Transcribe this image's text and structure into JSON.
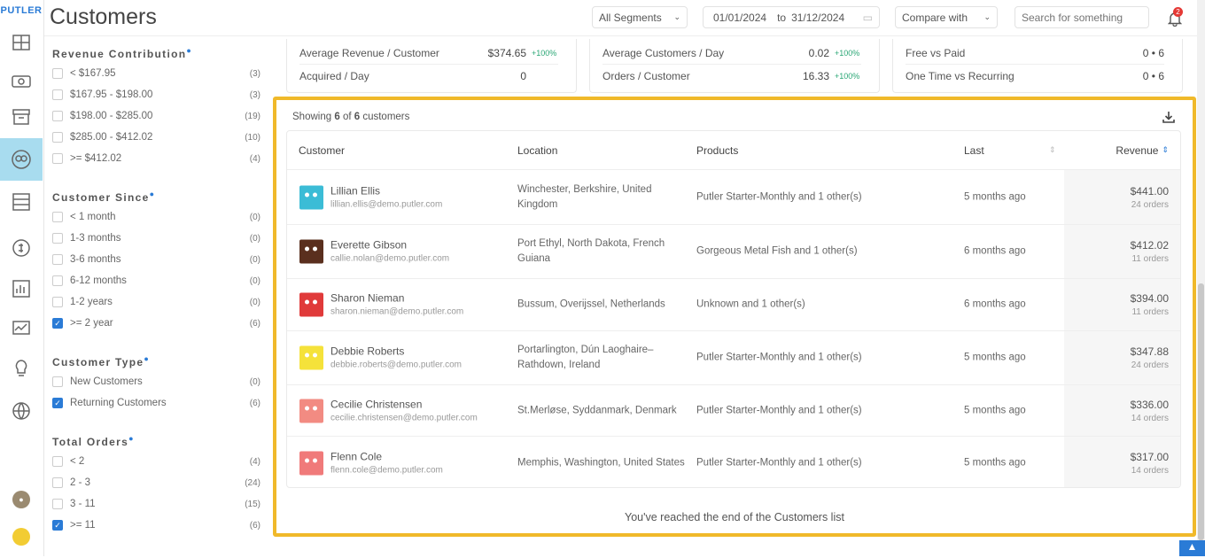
{
  "app": {
    "logo": "PUTLER",
    "title": "Customers"
  },
  "nav": [
    {
      "icon": "dashboard-icon"
    },
    {
      "icon": "sales-icon"
    },
    {
      "icon": "products-icon"
    },
    {
      "icon": "customers-icon",
      "active": true
    },
    {
      "icon": "transactions-icon"
    },
    {
      "icon": "subscriptions-icon"
    },
    {
      "icon": "reports-icon"
    },
    {
      "icon": "analytics-icon"
    },
    {
      "icon": "insights-icon"
    },
    {
      "icon": "global-icon"
    }
  ],
  "header": {
    "segment": "All Segments",
    "date_from": "01/01/2024",
    "date_to_label": "to",
    "date_to": "31/12/2024",
    "compare": "Compare with",
    "search_placeholder": "Search for something",
    "notifications": "2"
  },
  "filters": [
    {
      "title": "Revenue Contribution",
      "items": [
        {
          "label": "< $167.95",
          "count": "(3)"
        },
        {
          "label": "$167.95 - $198.00",
          "count": "(3)"
        },
        {
          "label": "$198.00 - $285.00",
          "count": "(19)"
        },
        {
          "label": "$285.00 - $412.02",
          "count": "(10)"
        },
        {
          "label": ">= $412.02",
          "count": "(4)"
        }
      ]
    },
    {
      "title": "Customer Since",
      "items": [
        {
          "label": "< 1 month",
          "count": "(0)"
        },
        {
          "label": "1-3 months",
          "count": "(0)"
        },
        {
          "label": "3-6 months",
          "count": "(0)"
        },
        {
          "label": "6-12 months",
          "count": "(0)"
        },
        {
          "label": "1-2 years",
          "count": "(0)"
        },
        {
          "label": ">= 2 year",
          "count": "(6)",
          "checked": true
        }
      ]
    },
    {
      "title": "Customer Type",
      "items": [
        {
          "label": "New Customers",
          "count": "(0)"
        },
        {
          "label": "Returning Customers",
          "count": "(6)",
          "checked": true
        }
      ]
    },
    {
      "title": "Total Orders",
      "items": [
        {
          "label": "< 2",
          "count": "(4)"
        },
        {
          "label": "2 - 3",
          "count": "(24)"
        },
        {
          "label": "3 - 11",
          "count": "(15)"
        },
        {
          "label": ">= 11",
          "count": "(6)",
          "checked": true
        }
      ]
    }
  ],
  "stats": [
    [
      {
        "label": "Average Revenue / Customer",
        "value": "$374.65",
        "change": "+100%"
      },
      {
        "label": "Acquired / Day",
        "value": "0",
        "change": ""
      }
    ],
    [
      {
        "label": "Average Customers / Day",
        "value": "0.02",
        "change": "+100%"
      },
      {
        "label": "Orders / Customer",
        "value": "16.33",
        "change": "+100%"
      }
    ],
    [
      {
        "label": "Free vs Paid",
        "value": "0 • 6",
        "change": ""
      },
      {
        "label": "One Time vs Recurring",
        "value": "0 • 6",
        "change": ""
      }
    ]
  ],
  "list": {
    "showing_prefix": "Showing",
    "shown": "6",
    "of": "of",
    "total": "6",
    "suffix": "customers",
    "end_text": "You've reached the end of the Customers list"
  },
  "columns": {
    "customer": "Customer",
    "location": "Location",
    "products": "Products",
    "last": "Last",
    "revenue": "Revenue"
  },
  "customers": [
    {
      "name": "Lillian Ellis",
      "email": "lillian.ellis@demo.putler.com",
      "location": "Winchester, Berkshire, United Kingdom",
      "products": "Putler Starter-Monthly and 1 other(s)",
      "last": "5 months ago",
      "revenue": "$441.00",
      "orders": "24 orders",
      "avatar_color": "#3bbcd6"
    },
    {
      "name": "Everette Gibson",
      "email": "callie.nolan@demo.putler.com",
      "location": "Port Ethyl, North Dakota, French Guiana",
      "products": "Gorgeous Metal Fish and 1 other(s)",
      "last": "6 months ago",
      "revenue": "$412.02",
      "orders": "11 orders",
      "avatar_color": "#5a2f1e"
    },
    {
      "name": "Sharon Nieman",
      "email": "sharon.nieman@demo.putler.com",
      "location": "Bussum, Overijssel, Netherlands",
      "products": "Unknown and 1 other(s)",
      "last": "6 months ago",
      "revenue": "$394.00",
      "orders": "11 orders",
      "avatar_color": "#e03a3a"
    },
    {
      "name": "Debbie Roberts",
      "email": "debbie.roberts@demo.putler.com",
      "location": "Portarlington, Dún Laoghaire–Rathdown, Ireland",
      "products": "Putler Starter-Monthly and 1 other(s)",
      "last": "5 months ago",
      "revenue": "$347.88",
      "orders": "24 orders",
      "avatar_color": "#f5e23a"
    },
    {
      "name": "Cecilie Christensen",
      "email": "cecilie.christensen@demo.putler.com",
      "location": "St.Merløse, Syddanmark, Denmark",
      "products": "Putler Starter-Monthly and 1 other(s)",
      "last": "5 months ago",
      "revenue": "$336.00",
      "orders": "14 orders",
      "avatar_color": "#f28b82"
    },
    {
      "name": "Flenn Cole",
      "email": "flenn.cole@demo.putler.com",
      "location": "Memphis, Washington, United States",
      "products": "Putler Starter-Monthly and 1 other(s)",
      "last": "5 months ago",
      "revenue": "$317.00",
      "orders": "14 orders",
      "avatar_color": "#f07a7a"
    }
  ],
  "colors": {
    "accent": "#2a7bd6",
    "highlight": "#f0b92a",
    "positive": "#2aa775"
  }
}
